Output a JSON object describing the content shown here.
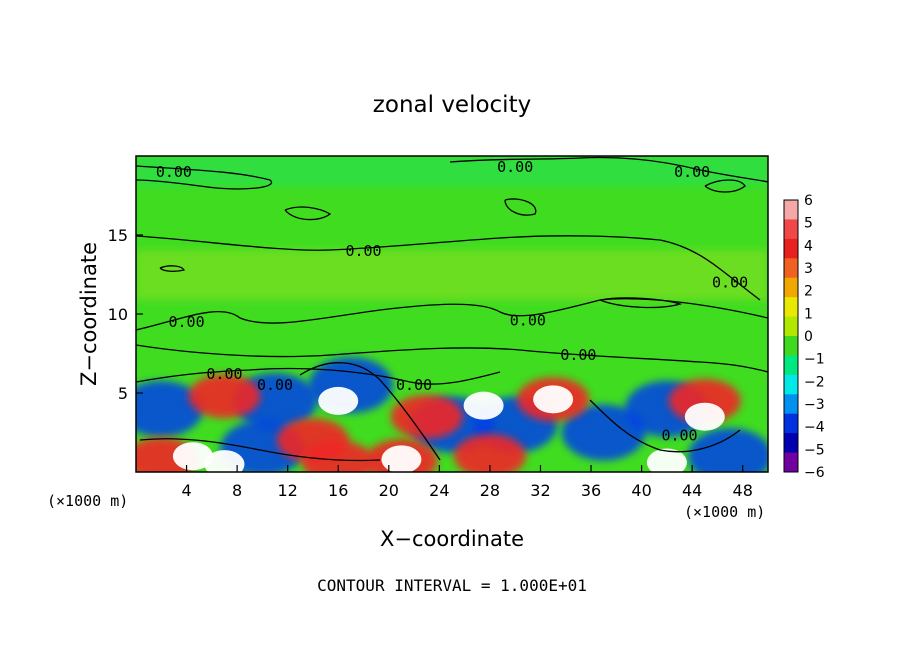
{
  "chart_data": {
    "type": "heatmap",
    "title": "zonal velocity",
    "xlabel": "X−coordinate",
    "ylabel": "Z−coordinate",
    "x_unit": "(×1000 m)",
    "y_unit": "(×1000 m)",
    "xlim": [
      0,
      50
    ],
    "ylim": [
      0,
      20
    ],
    "x_ticks": [
      4,
      8,
      12,
      16,
      20,
      24,
      28,
      32,
      36,
      40,
      44,
      48
    ],
    "y_ticks": [
      5,
      10,
      15
    ],
    "colorbar": {
      "ticks": [
        "6",
        "5",
        "4",
        "3",
        "2",
        "1",
        "0",
        "−1",
        "−2",
        "−3",
        "−4",
        "−5",
        "−6"
      ],
      "colors": [
        "#f4a8a8",
        "#f04848",
        "#e82020",
        "#f06020",
        "#f0a800",
        "#e8e800",
        "#b0e800",
        "#40d820",
        "#00e880",
        "#00e8e8",
        "#0090f0",
        "#0030e0",
        "#0000b0",
        "#7000a0"
      ]
    },
    "contour_label": "0.00",
    "contour_interval_text": "CONTOUR INTERVAL = 1.000E+01",
    "white_cells": [
      {
        "x": 4.5,
        "z": 1.0
      },
      {
        "x": 7.0,
        "z": 0.5
      },
      {
        "x": 16.0,
        "z": 4.5
      },
      {
        "x": 27.5,
        "z": 4.2
      },
      {
        "x": 33.0,
        "z": 4.6
      },
      {
        "x": 45.0,
        "z": 3.5
      },
      {
        "x": 21.0,
        "z": 0.8
      },
      {
        "x": 42.0,
        "z": 0.6
      }
    ],
    "red_cells": [
      {
        "x": 2.0,
        "z": 0.8
      },
      {
        "x": 7.0,
        "z": 4.8
      },
      {
        "x": 14.0,
        "z": 2.0
      },
      {
        "x": 21.0,
        "z": 0.7
      },
      {
        "x": 23.0,
        "z": 3.5
      },
      {
        "x": 28.0,
        "z": 1.0
      },
      {
        "x": 33.0,
        "z": 4.6
      },
      {
        "x": 45.0,
        "z": 4.5
      },
      {
        "x": 16.0,
        "z": 0.6
      }
    ],
    "blue_cells": [
      {
        "x": 2.0,
        "z": 4.0
      },
      {
        "x": 11.0,
        "z": 4.5
      },
      {
        "x": 17.0,
        "z": 5.5
      },
      {
        "x": 25.0,
        "z": 3.0
      },
      {
        "x": 30.0,
        "z": 3.0
      },
      {
        "x": 37.0,
        "z": 2.5
      },
      {
        "x": 42.0,
        "z": 4.0
      },
      {
        "x": 10.0,
        "z": 1.5
      },
      {
        "x": 47.0,
        "z": 1.0
      }
    ]
  }
}
